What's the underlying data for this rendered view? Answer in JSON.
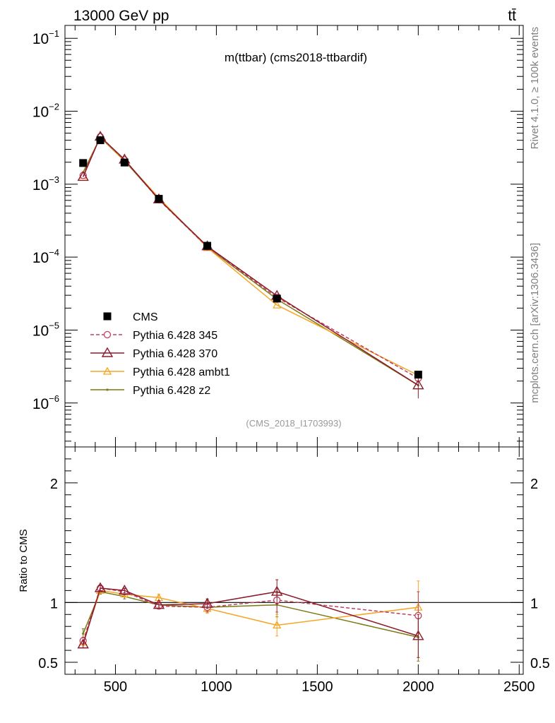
{
  "header": {
    "energy_label": "13000 GeV pp",
    "process_label": "tt̄"
  },
  "side": {
    "rivet_label": "Rivet 4.1.0, ≥ 100k events",
    "mcplots_label": "mcplots.cern.ch [arXiv:1306.3436]"
  },
  "chart_data": [
    {
      "type": "line",
      "panel": "main",
      "title": "m(ttbar) (cms2018-ttbardif)",
      "analysis_label": "(CMS_2018_I1703993)",
      "xlabel": "",
      "ylabel": "",
      "yscale": "log",
      "xlim": [
        250,
        2520
      ],
      "ylim": [
        2.5e-07,
        0.15
      ],
      "y_tick_labels": [
        "10^-1",
        "10^-2",
        "10^-3",
        "10^-4",
        "10^-5",
        "10^-6"
      ],
      "x": [
        340,
        425,
        545,
        715,
        955,
        1300,
        2000
      ],
      "series": [
        {
          "name": "CMS",
          "color": "#000000",
          "marker": "square",
          "values": [
            0.00195,
            0.004,
            0.00198,
            0.00063,
            0.000143,
            2.7e-05,
            2.45e-06
          ]
        },
        {
          "name": "Pythia 6.428 345",
          "color": "#c0405f",
          "marker": "circle",
          "dash": true,
          "values": [
            0.00132,
            0.00447,
            0.00215,
            0.00061,
            0.000138,
            2.8e-05,
            2.18e-06
          ]
        },
        {
          "name": "Pythia 6.428 370",
          "color": "#8b1a2b",
          "marker": "triangle",
          "dash": false,
          "values": [
            0.00126,
            0.00448,
            0.00218,
            0.00062,
            0.000141,
            2.95e-05,
            1.75e-06
          ]
        },
        {
          "name": "Pythia 6.428 ambt1",
          "color": "#f5a623",
          "marker": "triangle-small",
          "dash": false,
          "values": [
            0.00131,
            0.00442,
            0.00213,
            0.00065,
            0.000135,
            2.2e-05,
            2.4e-06
          ]
        },
        {
          "name": "Pythia 6.428 z2",
          "color": "#7a7a14",
          "marker": "dot",
          "dash": false,
          "values": [
            0.00145,
            0.00437,
            0.00209,
            0.00062,
            0.000137,
            2.65e-05,
            1.75e-06
          ]
        }
      ]
    },
    {
      "type": "line",
      "panel": "ratio",
      "xlabel": "",
      "ylabel": "Ratio to CMS",
      "xlim": [
        250,
        2520
      ],
      "ylim": [
        0.4,
        2.3
      ],
      "x_ticks": [
        500,
        1000,
        1500,
        2000,
        2500
      ],
      "x_tick_labels": [
        "500",
        "1000",
        "1500",
        "2000",
        "2500"
      ],
      "y_ticks": [
        0.5,
        1,
        2
      ],
      "y_tick_labels": [
        "0.5",
        "1",
        "2"
      ],
      "x": [
        340,
        425,
        545,
        715,
        955,
        1300,
        2000
      ],
      "series": [
        {
          "name": "Pythia 6.428 345",
          "color": "#c0405f",
          "dash": true,
          "values": [
            0.68,
            1.12,
            1.09,
            0.97,
            0.96,
            1.02,
            0.89
          ],
          "err": [
            0.03,
            0.02,
            0.02,
            0.02,
            0.04,
            0.1,
            0.2
          ]
        },
        {
          "name": "Pythia 6.428 370",
          "color": "#8b1a2b",
          "dash": false,
          "values": [
            0.65,
            1.12,
            1.1,
            0.98,
            0.99,
            1.09,
            0.72
          ],
          "err": [
            0.03,
            0.02,
            0.02,
            0.02,
            0.04,
            0.1,
            0.18
          ]
        },
        {
          "name": "Pythia 6.428 ambt1",
          "color": "#f5a623",
          "dash": false,
          "values": [
            0.67,
            1.1,
            1.07,
            1.04,
            0.95,
            0.81,
            0.96
          ],
          "err": [
            0.03,
            0.02,
            0.02,
            0.03,
            0.04,
            0.09,
            0.22
          ]
        },
        {
          "name": "Pythia 6.428 z2",
          "color": "#7a7a14",
          "dash": false,
          "values": [
            0.74,
            1.09,
            1.05,
            0.98,
            0.96,
            0.98,
            0.71
          ],
          "err": [
            0.04,
            0.02,
            0.02,
            0.02,
            0.04,
            0.1,
            0.2
          ]
        }
      ]
    }
  ]
}
